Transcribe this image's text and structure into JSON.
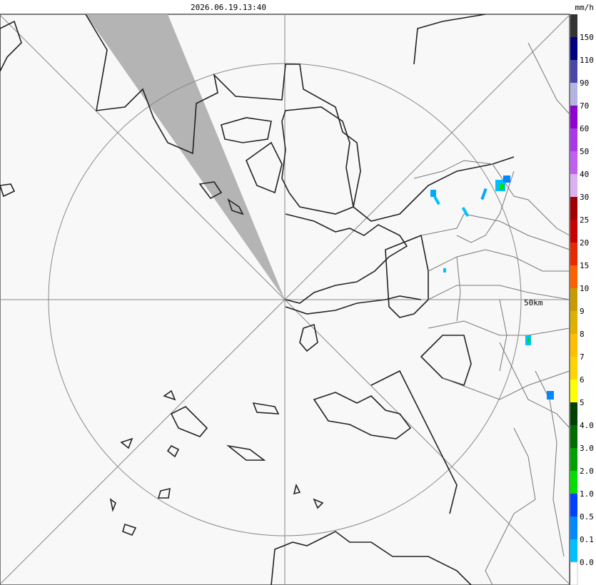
{
  "header": {
    "timestamp": "2026.06.19.13:40",
    "unit": "mm/h"
  },
  "map": {
    "range_label": "50km"
  },
  "legend": {
    "top_color": "#333333",
    "levels": [
      {
        "label": "150",
        "color": "#000080"
      },
      {
        "label": "110",
        "color": "#4848a8"
      },
      {
        "label": "90",
        "color": "#b4b4e0"
      },
      {
        "label": "70",
        "color": "#9000d0"
      },
      {
        "label": "60",
        "color": "#a838e8"
      },
      {
        "label": "50",
        "color": "#c060f0"
      },
      {
        "label": "40",
        "color": "#dcb0f0"
      },
      {
        "label": "30",
        "color": "#a00000"
      },
      {
        "label": "25",
        "color": "#c80000"
      },
      {
        "label": "20",
        "color": "#e82800"
      },
      {
        "label": "15",
        "color": "#ff6000"
      },
      {
        "label": "10",
        "color": "#c89c00"
      },
      {
        "label": "9",
        "color": "#e0b000"
      },
      {
        "label": "8",
        "color": "#ffbe00"
      },
      {
        "label": "7",
        "color": "#ffd400"
      },
      {
        "label": "6",
        "color": "#ffff00"
      },
      {
        "label": "5",
        "color": "#004000"
      },
      {
        "label": "4.0",
        "color": "#006c00"
      },
      {
        "label": "3.0",
        "color": "#00a000"
      },
      {
        "label": "2.0",
        "color": "#00e000"
      },
      {
        "label": "1.0",
        "color": "#0040ff"
      },
      {
        "label": "0.5",
        "color": "#0088ff"
      },
      {
        "label": "0.1",
        "color": "#00c0ff"
      },
      {
        "label": "0.0",
        "color": "#ffffff"
      }
    ]
  }
}
